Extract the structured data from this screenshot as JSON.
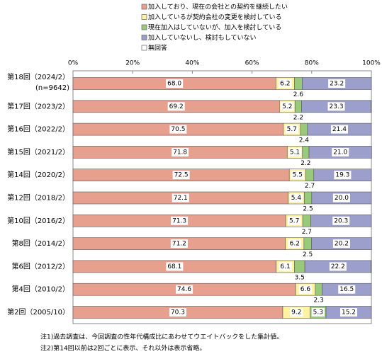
{
  "chart_data": {
    "type": "bar",
    "orientation": "horizontal",
    "stacked": true,
    "categories": [
      "第18回（2024/2）",
      "第17回（2023/2）",
      "第16回（2022/2）",
      "第15回（2021/2）",
      "第14回（2020/2）",
      "第12回（2018/2）",
      "第10回（2016/2）",
      "第8回（2014/2）",
      "第6回（2012/2）",
      "第4回（2010/2）",
      "第2回（2005/10）"
    ],
    "sample_size": "(n=9642)",
    "series": [
      {
        "name": "加入しており、現在の会社との契約を継続したい",
        "color": "#e8a08e",
        "values": [
          68.0,
          69.2,
          70.5,
          71.8,
          72.5,
          72.1,
          71.3,
          71.2,
          68.1,
          74.6,
          70.3
        ],
        "value_labels": [
          "68.0",
          "69.2",
          "70.5",
          "71.8",
          "72.5",
          "72.1",
          "71.3",
          "71.2",
          "68.1",
          "74.6",
          "70.3"
        ]
      },
      {
        "name": "加入しているが契約会社の変更を検討している",
        "color": "#fff2a0",
        "values": [
          6.2,
          5.2,
          5.7,
          5.1,
          5.5,
          5.4,
          5.7,
          6.2,
          6.1,
          6.6,
          9.2
        ],
        "value_labels": [
          "6.2",
          "5.2",
          "5.7",
          "5.1",
          "5.5",
          "5.4",
          "5.7",
          "6.2",
          "6.1",
          "6.6",
          "9.2"
        ]
      },
      {
        "name": "現在加入はしていないが、加入を検討している",
        "color": "#99c97a",
        "values": [
          2.6,
          2.2,
          2.4,
          2.2,
          2.7,
          2.5,
          2.7,
          2.5,
          3.5,
          2.3,
          5.3
        ],
        "value_labels": [
          "2.6",
          "2.2",
          "2.4",
          "2.2",
          "2.7",
          "2.5",
          "2.7",
          "2.5",
          "3.5",
          "2.3",
          "5.3"
        ]
      },
      {
        "name": "加入していないし、検討もしていない",
        "color": "#9c9fcc",
        "values": [
          23.2,
          23.3,
          21.4,
          21.0,
          19.3,
          20.0,
          20.3,
          20.2,
          22.2,
          16.5,
          15.2
        ],
        "value_labels": [
          "23.2",
          "23.3",
          "21.4",
          "21.0",
          "19.3",
          "20.0",
          "20.3",
          "20.2",
          "22.2",
          "16.5",
          "15.2"
        ]
      },
      {
        "name": "無回答",
        "color": "#ffffff",
        "values": [
          0,
          0.1,
          0,
          0,
          0,
          0,
          0,
          0,
          0.1,
          0,
          0
        ]
      }
    ],
    "xlim": [
      0,
      100
    ],
    "xticks": [
      {
        "value": 0,
        "label": "0%"
      },
      {
        "value": 20,
        "label": "20%"
      },
      {
        "value": 40,
        "label": "40%"
      },
      {
        "value": 60,
        "label": "60%"
      },
      {
        "value": 80,
        "label": "80%"
      },
      {
        "value": 100,
        "label": "100%"
      }
    ],
    "legend_position": "top",
    "notes": [
      "注1)過去調査は、今回調査の性年代構成比にあわせてウエイトバックをした集計値。",
      "注2)第14回以前は2回ごとに表示、それ以外は表示省略。"
    ]
  }
}
